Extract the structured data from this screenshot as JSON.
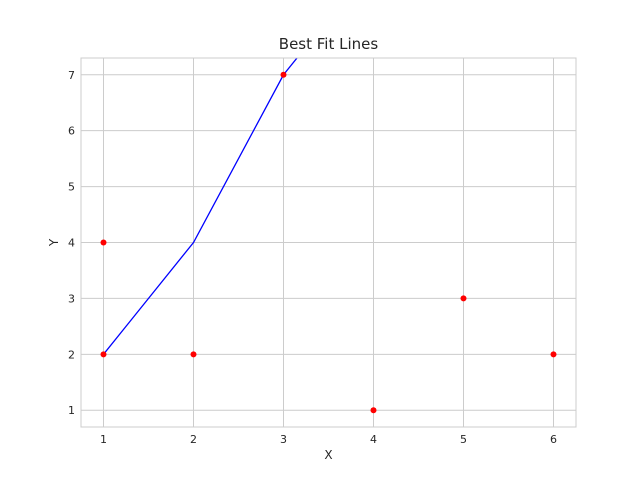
{
  "chart_data": {
    "type": "line",
    "title": "Best Fit Lines",
    "xlabel": "X",
    "ylabel": "Y",
    "xlim": [
      0.75,
      6.25
    ],
    "ylim": [
      0.7,
      7.3
    ],
    "xticks": [
      1,
      2,
      3,
      4,
      5,
      6
    ],
    "yticks": [
      1,
      2,
      3,
      4,
      5,
      6,
      7
    ],
    "grid": true,
    "series": [
      {
        "type": "scatter",
        "color": "#ff0000",
        "points": [
          {
            "x": 1,
            "y": 2
          },
          {
            "x": 2,
            "y": 2
          },
          {
            "x": 3,
            "y": 7
          },
          {
            "x": 4,
            "y": 1
          },
          {
            "x": 5,
            "y": 3
          },
          {
            "x": 6,
            "y": 2
          },
          {
            "x": 1,
            "y": 4
          }
        ]
      },
      {
        "type": "line",
        "color": "#0000ff",
        "points": [
          {
            "x": 1,
            "y": 2
          },
          {
            "x": 2,
            "y": 4
          },
          {
            "x": 3,
            "y": 7
          },
          {
            "x": 3.25,
            "y": 7.5
          }
        ]
      }
    ]
  }
}
